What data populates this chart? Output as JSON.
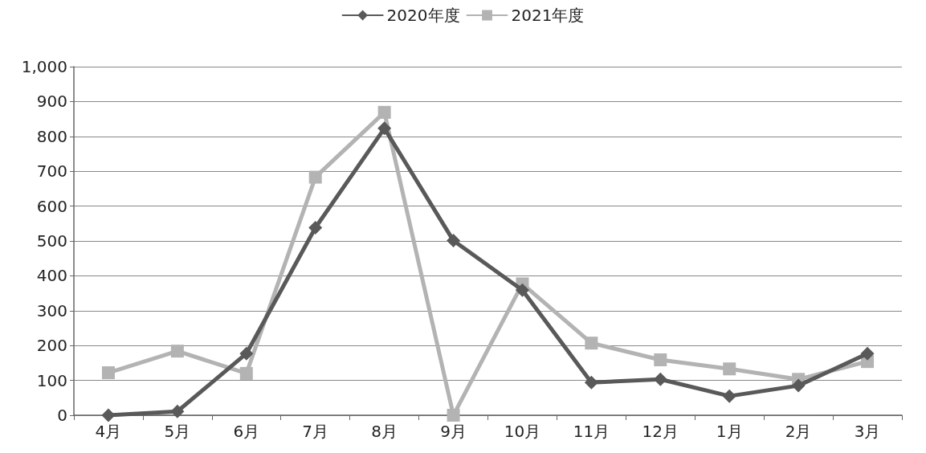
{
  "chart_data": {
    "type": "line",
    "categories": [
      "4月",
      "5月",
      "6月",
      "7月",
      "8月",
      "9月",
      "10月",
      "11月",
      "12月",
      "1月",
      "2月",
      "3月"
    ],
    "series": [
      {
        "name": "2020年度",
        "color": "#595959",
        "marker": "diamond",
        "values": [
          0,
          11,
          177,
          538,
          823,
          501,
          359,
          94,
          103,
          55,
          85,
          177
        ]
      },
      {
        "name": "2021年度",
        "color": "#b3b3b3",
        "marker": "square",
        "values": [
          122,
          184,
          120,
          683,
          869,
          0,
          377,
          207,
          159,
          133,
          103,
          154
        ]
      }
    ],
    "ylim": [
      0,
      1000
    ],
    "yticks": [
      0,
      100,
      200,
      300,
      400,
      500,
      600,
      700,
      800,
      900,
      {
        "value": 1000,
        "label": "1,000"
      }
    ],
    "grid": "y",
    "legend": "top",
    "line_style": "solid"
  }
}
